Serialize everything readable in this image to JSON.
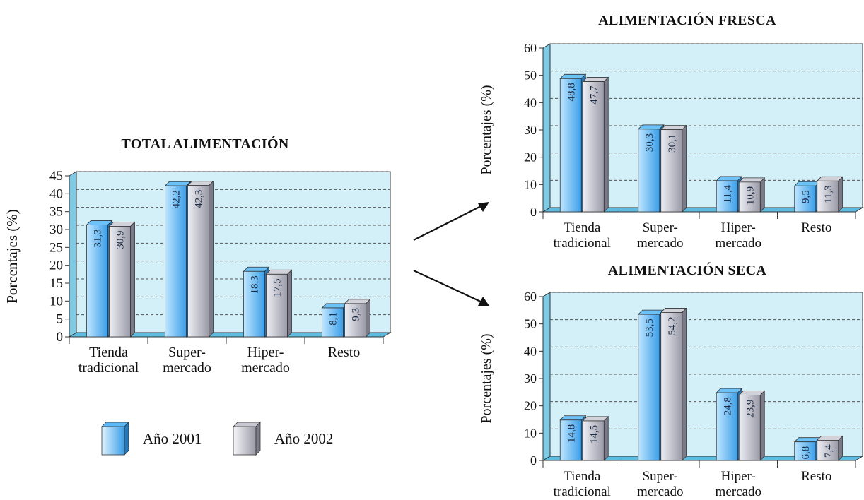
{
  "legend": [
    {
      "label": "Año 2001",
      "color": "#3a9ee8"
    },
    {
      "label": "Año 2002",
      "color": "#b8b8c8"
    }
  ],
  "colors": {
    "plot_bg": "#d3eff8",
    "bar_2001_light": "#bfe6ff",
    "bar_2001_dark": "#3a9ee8",
    "bar_2002_light": "#eeeef4",
    "bar_2002_dark": "#9a9aa8"
  },
  "chart_data": [
    {
      "id": "total",
      "type": "bar",
      "title": "TOTAL ALIMENTACIÓN",
      "ylabel": "Porcentajes (%)",
      "ylim": [
        0,
        45
      ],
      "yticks": [
        0,
        5,
        10,
        15,
        20,
        25,
        30,
        35,
        40,
        45
      ],
      "categories": [
        [
          "Tienda",
          "tradicional"
        ],
        [
          "Super-",
          "mercado"
        ],
        [
          "Hiper-",
          "mercado"
        ],
        [
          "Resto"
        ]
      ],
      "series": [
        {
          "name": "Año 2001",
          "values": [
            31.3,
            42.2,
            18.3,
            8.1
          ],
          "labels": [
            "31,3",
            "42,2",
            "18,3",
            "8,1"
          ]
        },
        {
          "name": "Año 2002",
          "values": [
            30.9,
            42.3,
            17.5,
            9.3
          ],
          "labels": [
            "30,9",
            "42,3",
            "17,5",
            "9,3"
          ]
        }
      ]
    },
    {
      "id": "fresca",
      "type": "bar",
      "title": "ALIMENTACIÓN FRESCA",
      "ylabel": "Porcentajes (%)",
      "ylim": [
        0,
        60
      ],
      "yticks": [
        0,
        10,
        20,
        30,
        40,
        50,
        60
      ],
      "categories": [
        [
          "Tienda",
          "tradicional"
        ],
        [
          "Super-",
          "mercado"
        ],
        [
          "Hiper-",
          "mercado"
        ],
        [
          "Resto"
        ]
      ],
      "series": [
        {
          "name": "Año 2001",
          "values": [
            48.8,
            30.3,
            11.4,
            9.5
          ],
          "labels": [
            "48,8",
            "30,3",
            "11,4",
            "9,5"
          ]
        },
        {
          "name": "Año 2002",
          "values": [
            47.7,
            30.1,
            10.9,
            11.3
          ],
          "labels": [
            "47,7",
            "30,1",
            "10,9",
            "11,3"
          ]
        }
      ]
    },
    {
      "id": "seca",
      "type": "bar",
      "title": "ALIMENTACIÓN SECA",
      "ylabel": "Porcentajes (%)",
      "ylim": [
        0,
        60
      ],
      "yticks": [
        0,
        10,
        20,
        30,
        40,
        50,
        60
      ],
      "categories": [
        [
          "Tienda",
          "tradicional"
        ],
        [
          "Super-",
          "mercado"
        ],
        [
          "Hiper-",
          "mercado"
        ],
        [
          "Resto"
        ]
      ],
      "series": [
        {
          "name": "Año 2001",
          "values": [
            14.8,
            53.5,
            24.8,
            6.8
          ],
          "labels": [
            "14,8",
            "53,5",
            "24,8",
            "6,8"
          ]
        },
        {
          "name": "Año 2002",
          "values": [
            14.5,
            54.2,
            23.9,
            7.4
          ],
          "labels": [
            "14,5",
            "54,2",
            "23,9",
            "7,4"
          ]
        }
      ]
    }
  ]
}
